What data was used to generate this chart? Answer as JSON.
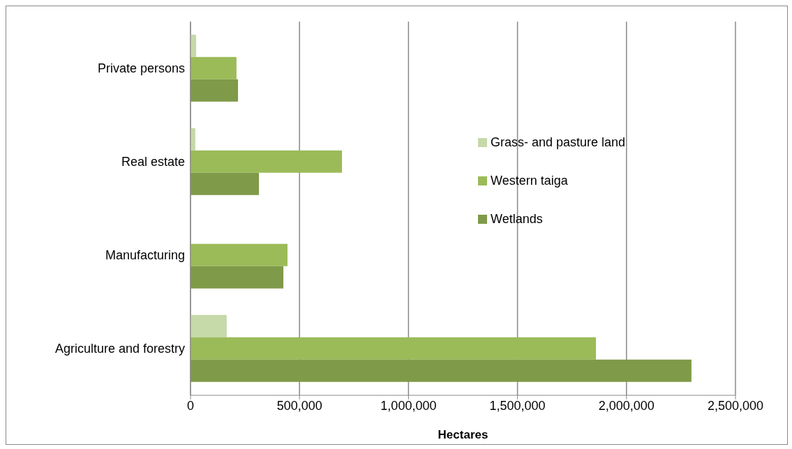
{
  "chart_data": {
    "type": "bar",
    "orientation": "horizontal",
    "xlabel": "Hectares",
    "categories": [
      "Private persons",
      "Real estate",
      "Manufacturing",
      "Agriculture and forestry"
    ],
    "series": [
      {
        "name": "Grass- and pasture land",
        "color": "#c6d9a9",
        "values": [
          26000,
          22000,
          null,
          166000
        ]
      },
      {
        "name": "Western taiga",
        "color": "#9bbb59",
        "values": [
          211000,
          695000,
          445000,
          1860000
        ]
      },
      {
        "name": "Wetlands",
        "color": "#7f9a48",
        "values": [
          218000,
          314000,
          426000,
          2298000
        ]
      }
    ],
    "xlim": [
      0,
      2500000
    ],
    "xticks": [
      0,
      {
        "value": 500000,
        "label": "500,000"
      },
      {
        "value": 1000000,
        "label": "1,000,000"
      },
      {
        "value": 1500000,
        "label": "1,500,000"
      },
      {
        "value": 2000000,
        "label": "2,000,000"
      },
      {
        "value": 2500000,
        "label": "2,500,000"
      }
    ],
    "grid": "x",
    "legend": "right"
  }
}
